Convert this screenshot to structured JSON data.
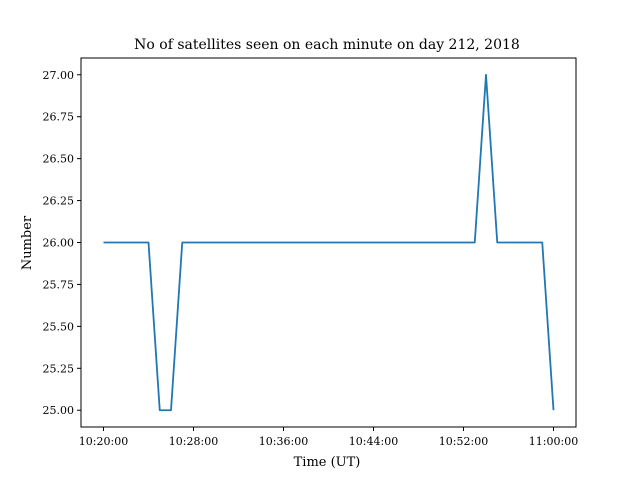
{
  "chart_data": {
    "type": "line",
    "title": "No of satellites seen on each minute on day 212, 2018",
    "xlabel": "Time (UT)",
    "ylabel": "Number",
    "xlim": [
      "10:18:00",
      "11:02:00"
    ],
    "ylim": [
      24.9,
      27.1
    ],
    "x_ticks": [
      "10:20:00",
      "10:28:00",
      "10:36:00",
      "10:44:00",
      "10:52:00",
      "11:00:00"
    ],
    "y_ticks": [
      "25.00",
      "25.25",
      "25.50",
      "25.75",
      "26.00",
      "26.25",
      "26.50",
      "26.75",
      "27.00"
    ],
    "grid": false,
    "legend": "none",
    "series": [
      {
        "color": "#1f77b4",
        "x": [
          "10:20:00",
          "10:21:00",
          "10:22:00",
          "10:23:00",
          "10:24:00",
          "10:25:00",
          "10:26:00",
          "10:27:00",
          "10:28:00",
          "10:29:00",
          "10:30:00",
          "10:31:00",
          "10:32:00",
          "10:33:00",
          "10:34:00",
          "10:35:00",
          "10:36:00",
          "10:37:00",
          "10:38:00",
          "10:39:00",
          "10:40:00",
          "10:41:00",
          "10:42:00",
          "10:43:00",
          "10:44:00",
          "10:45:00",
          "10:46:00",
          "10:47:00",
          "10:48:00",
          "10:49:00",
          "10:50:00",
          "10:51:00",
          "10:52:00",
          "10:53:00",
          "10:54:00",
          "10:55:00",
          "10:56:00",
          "10:57:00",
          "10:58:00",
          "10:59:00",
          "11:00:00"
        ],
        "y": [
          26,
          26,
          26,
          26,
          26,
          25,
          25,
          26,
          26,
          26,
          26,
          26,
          26,
          26,
          26,
          26,
          26,
          26,
          26,
          26,
          26,
          26,
          26,
          26,
          26,
          26,
          26,
          26,
          26,
          26,
          26,
          26,
          26,
          26,
          27,
          26,
          26,
          26,
          26,
          26,
          25
        ]
      }
    ]
  }
}
